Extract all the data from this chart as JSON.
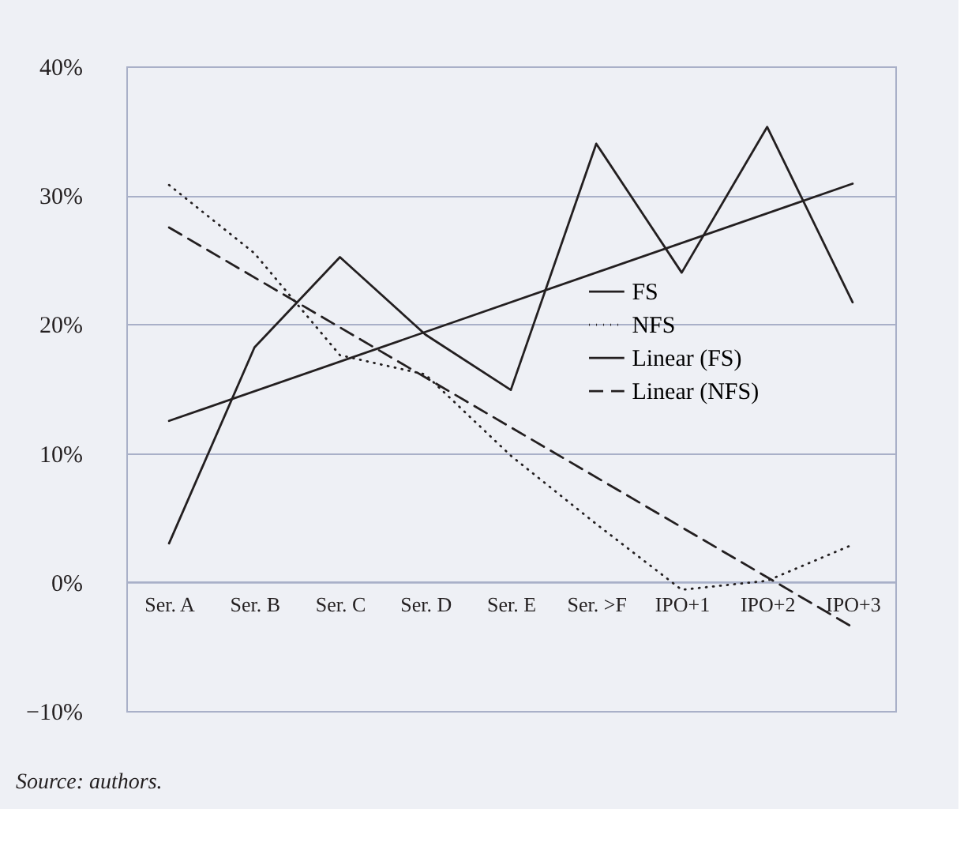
{
  "chart_data": {
    "type": "line",
    "categories": [
      "Ser. A",
      "Ser. B",
      "Ser. C",
      "Ser. D",
      "Ser. E",
      "Ser. >F",
      "IPO+1",
      "IPO+2",
      "IPO+3"
    ],
    "series": [
      {
        "name": "FS",
        "color": "#231f20",
        "line_style": "solid",
        "values": [
          3.0,
          18.2,
          25.2,
          19.2,
          14.9,
          34.0,
          24.0,
          35.3,
          21.7
        ]
      },
      {
        "name": "NFS",
        "color": "#231f20",
        "line_style": "dotted",
        "values": [
          30.8,
          25.5,
          17.6,
          16.1,
          9.8,
          4.5,
          -0.6,
          0.1,
          2.9
        ]
      },
      {
        "name": "Linear (FS)",
        "color": "#231f20",
        "line_style": "solid",
        "x": [
          "Ser. A",
          "IPO+3"
        ],
        "values": [
          12.5,
          30.9
        ]
      },
      {
        "name": "Linear (NFS)",
        "color": "#231f20",
        "line_style": "dashed",
        "x": [
          "Ser. A",
          "IPO+3"
        ],
        "values": [
          27.5,
          -3.5
        ]
      }
    ],
    "ylim": [
      -10,
      40
    ],
    "yticks": [
      {
        "value": -10,
        "label": "−10%"
      },
      {
        "value": 0,
        "label": "0%"
      },
      {
        "value": 10,
        "label": "10%"
      },
      {
        "value": 20,
        "label": "20%"
      },
      {
        "value": 30,
        "label": "30%"
      },
      {
        "value": 40,
        "label": "40%"
      }
    ],
    "grid": "y",
    "legend": "right",
    "marker": "none",
    "annotations": [
      "Source: authors."
    ]
  }
}
